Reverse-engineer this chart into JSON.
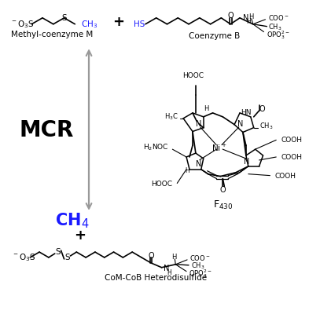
{
  "bg_color": "#ffffff",
  "black": "#000000",
  "blue": "#1a1aff",
  "gray": "#999999",
  "methyl_com_label": "Methyl-coenzyme M",
  "cob_label": "Coenzyme B",
  "mcr_label": "MCR",
  "product_label": "CoM-CoB Heterodisulfide",
  "f430_label": "F",
  "f430_sub": "430",
  "fig_width": 3.93,
  "fig_height": 4.0,
  "dpi": 100
}
